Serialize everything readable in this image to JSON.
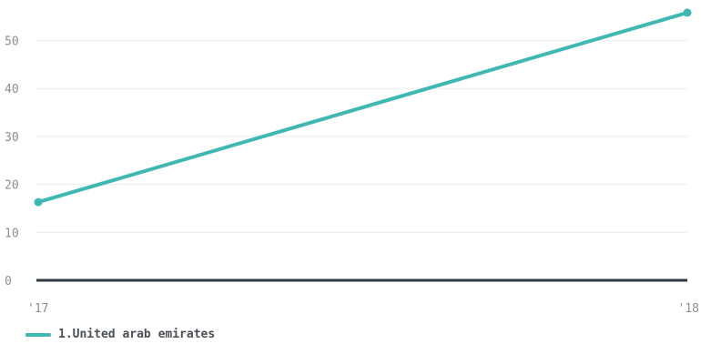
{
  "chart_data": {
    "type": "line",
    "x": [
      "'17",
      "'18"
    ],
    "series": [
      {
        "name": "1.United arab emirates",
        "values": [
          16.3,
          55.8
        ],
        "color": "#3fb8b3"
      }
    ],
    "ylim": [
      0,
      58
    ],
    "y_ticks": [
      "0",
      "10",
      "20",
      "30",
      "40",
      "50"
    ],
    "grid": true,
    "legend_position": "bottom-left",
    "zero_line_color": "#2f3a3f",
    "grid_color": "#e9ecee"
  }
}
